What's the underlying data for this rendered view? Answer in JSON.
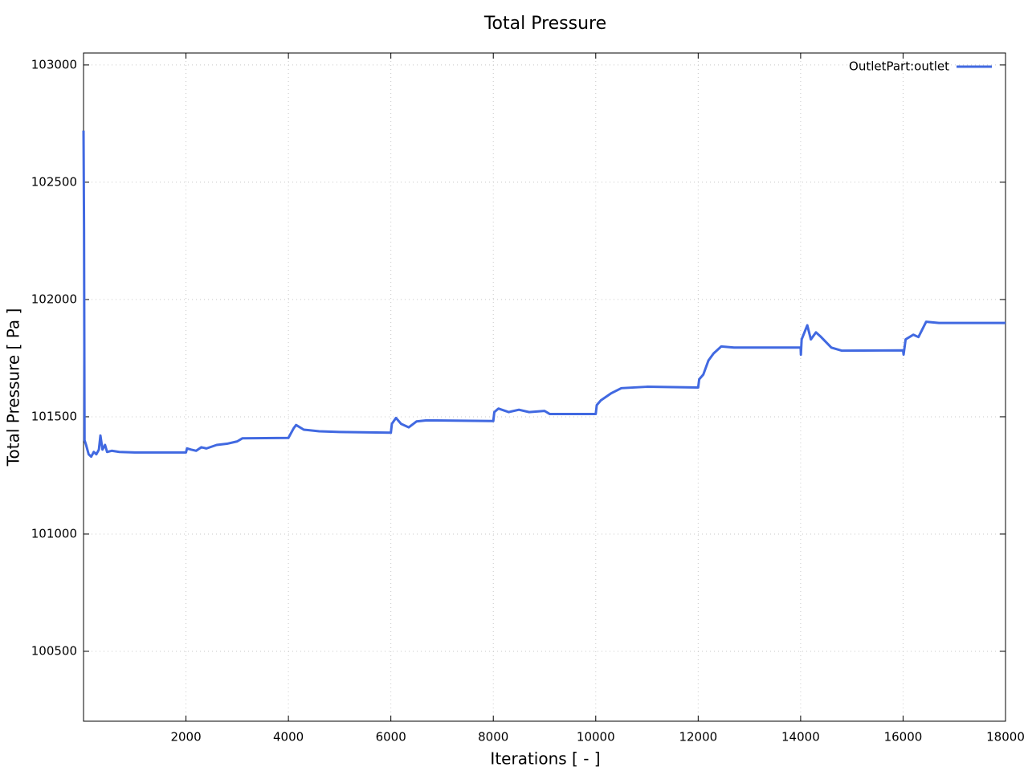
{
  "chart_data": {
    "type": "line",
    "title": "Total Pressure",
    "x_label": "Iterations [ - ]",
    "y_label": "Total Pressure [ Pa ]",
    "xlim": [
      0,
      18000
    ],
    "ylim": [
      100202,
      103051
    ],
    "xticks": [
      2000,
      4000,
      6000,
      8000,
      10000,
      12000,
      14000,
      16000,
      18000
    ],
    "yticks": [
      100500,
      101000,
      101500,
      102000,
      102500,
      103000
    ],
    "grid": true,
    "legend": "upper right",
    "x": [
      0,
      10,
      20,
      50,
      100,
      150,
      200,
      250,
      300,
      330,
      370,
      420,
      460,
      550,
      700,
      1000,
      2000,
      2020,
      2100,
      2200,
      2300,
      2400,
      2600,
      2800,
      3000,
      3100,
      4000,
      4100,
      4150,
      4300,
      4600,
      5000,
      6000,
      6020,
      6100,
      6200,
      6350,
      6500,
      6700,
      8000,
      8020,
      8100,
      8300,
      8500,
      8700,
      9000,
      9100,
      10000,
      10020,
      10100,
      10300,
      10500,
      11000,
      12000,
      12020,
      12100,
      12200,
      12300,
      12450,
      12700,
      14000,
      14005,
      14020,
      14130,
      14200,
      14300,
      14400,
      14600,
      14800,
      16000,
      16010,
      16050,
      16200,
      16300,
      16450,
      16700,
      18000
    ],
    "series": [
      {
        "name": "OutletPart:outlet",
        "color": "#4169e1",
        "values": [
          102720,
          102300,
          101400,
          101380,
          101340,
          101330,
          101350,
          101340,
          101360,
          101420,
          101360,
          101380,
          101350,
          101355,
          101350,
          101348,
          101348,
          101365,
          101360,
          101355,
          101370,
          101365,
          101380,
          101385,
          101395,
          101408,
          101410,
          101450,
          101465,
          101445,
          101438,
          101435,
          101432,
          101470,
          101495,
          101470,
          101455,
          101480,
          101485,
          101482,
          101520,
          101535,
          101520,
          101530,
          101520,
          101525,
          101512,
          101512,
          101550,
          101570,
          101600,
          101622,
          101628,
          101625,
          101660,
          101680,
          101740,
          101770,
          101800,
          101795,
          101795,
          101765,
          101830,
          101890,
          101830,
          101860,
          101840,
          101795,
          101782,
          101783,
          101765,
          101830,
          101850,
          101840,
          101905,
          101900,
          101900
        ]
      }
    ]
  }
}
